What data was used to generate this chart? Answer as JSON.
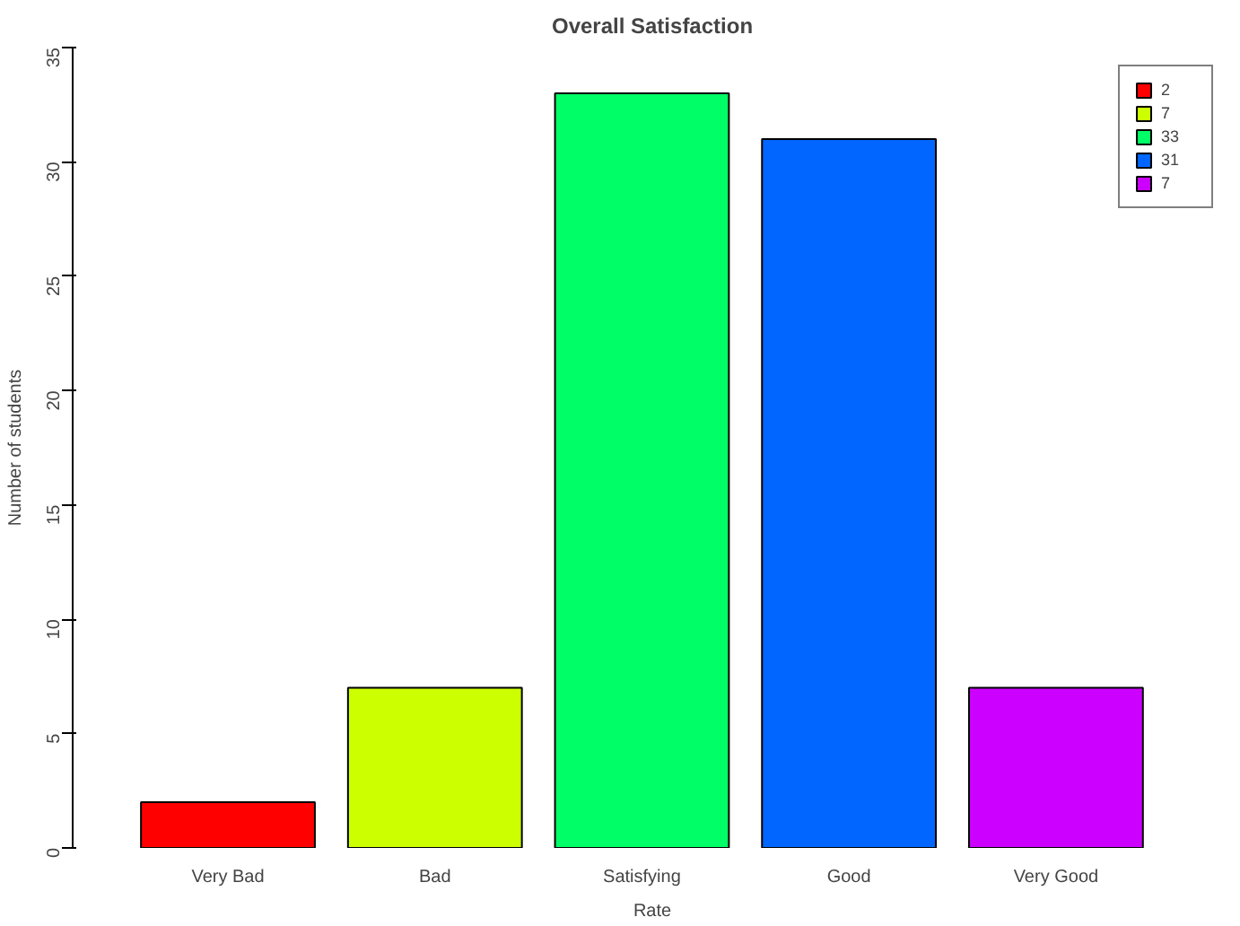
{
  "chart_data": {
    "type": "bar",
    "title": "Overall Satisfaction",
    "xlabel": "Rate",
    "ylabel": "Number of students",
    "categories": [
      "Very Bad",
      "Bad",
      "Satisfying",
      "Good",
      "Very Good"
    ],
    "series": [
      {
        "name": "2",
        "color": "#ff0000",
        "values": [
          2,
          null,
          null,
          null,
          null
        ]
      },
      {
        "name": "7",
        "color": "#ccff00",
        "values": [
          null,
          7,
          null,
          null,
          null
        ]
      },
      {
        "name": "33",
        "color": "#00ff66",
        "values": [
          null,
          null,
          33,
          null,
          null
        ]
      },
      {
        "name": "31",
        "color": "#0066ff",
        "values": [
          null,
          null,
          null,
          31,
          null
        ]
      },
      {
        "name": "7",
        "color": "#cc00ff",
        "values": [
          null,
          null,
          null,
          null,
          7
        ]
      }
    ],
    "ylim": [
      0,
      35
    ],
    "yticks": [
      0,
      5,
      10,
      15,
      20,
      25,
      30,
      35
    ],
    "grid": false,
    "legend": "top right"
  }
}
